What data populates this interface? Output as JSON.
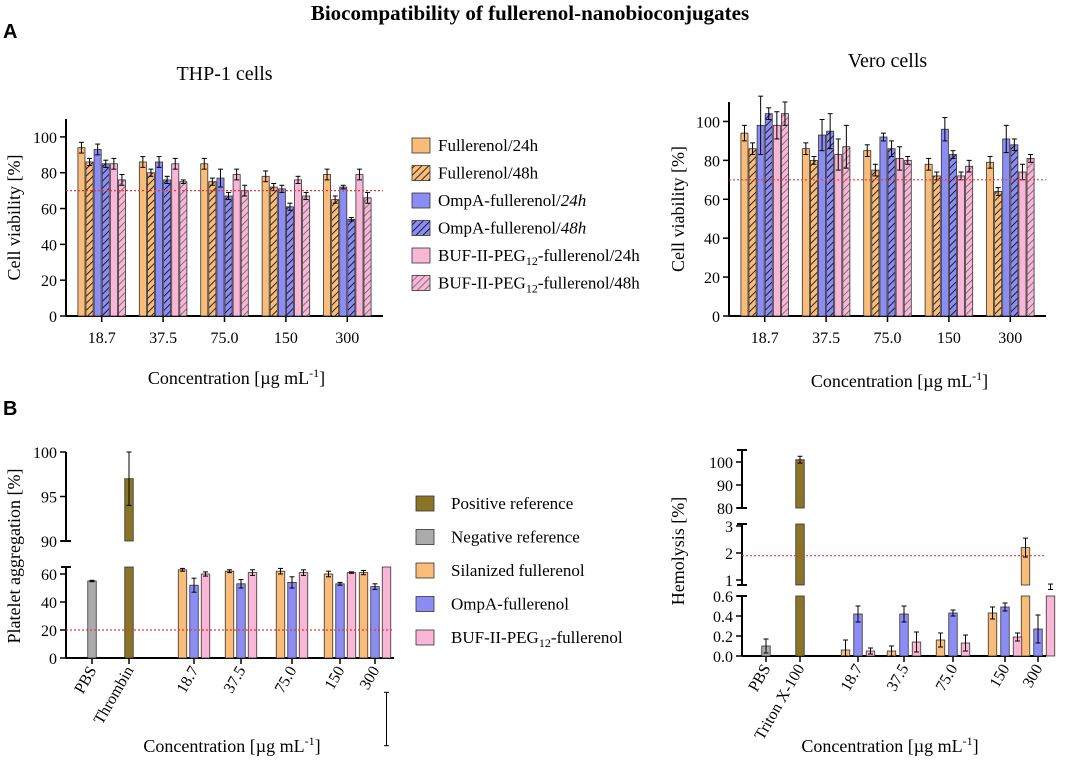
{
  "figure": {
    "title": "Biocompatibility of fullerenol-nanobioconjugates",
    "panel_a": "A",
    "panel_b": "B"
  },
  "colors": {
    "orange": "#f9bc79",
    "blue": "#8c8cf5",
    "pink": "#f9b6d7",
    "olive": "#8c7426",
    "gray": "#ababab",
    "ref_line": "#e33b3b",
    "axis": "#000000"
  },
  "legend_a": [
    {
      "text": "Fullerenol/24h",
      "color": "orange",
      "hatch": false
    },
    {
      "text": "Fullerenol/48h",
      "color": "orange",
      "hatch": true
    },
    {
      "pre": "OmpA-fullerenol/",
      "ital": "24h",
      "color": "blue",
      "hatch": false
    },
    {
      "pre": "OmpA-fullerenol/",
      "ital": "48h",
      "color": "blue",
      "hatch": true
    },
    {
      "pre": "BUF-II-PEG",
      "sub": "12",
      "post": "-fullerenol/24h",
      "color": "pink",
      "hatch": false
    },
    {
      "pre": "BUF-II-PEG",
      "sub": "12",
      "post": "-fullerenol/48h",
      "color": "pink",
      "hatch": true
    }
  ],
  "legend_b": [
    {
      "text": "Positive reference",
      "color": "olive"
    },
    {
      "text": "Negative reference",
      "color": "gray"
    },
    {
      "text": "Silanized fullerenol",
      "color": "orange"
    },
    {
      "text": "OmpA-fullerenol",
      "color": "blue"
    },
    {
      "pre": "BUF-II-PEG",
      "sub": "12",
      "post": "-fullerenol",
      "color": "pink"
    }
  ],
  "chart_data": [
    {
      "type": "bar",
      "title": "THP-1 cells",
      "xlabel": "Concentration [µg mL⁻¹]",
      "ylabel": "Cell viability [%]",
      "categories": [
        "18.7",
        "37.5",
        "75.0",
        "150",
        "300"
      ],
      "ylim": [
        0,
        110
      ],
      "yticks": [
        0,
        20,
        40,
        60,
        80,
        100
      ],
      "reference_line": 70,
      "series": [
        {
          "name": "Fullerenol/24h",
          "color": "orange",
          "hatch": false,
          "values": [
            94,
            86,
            85,
            78,
            79
          ],
          "errors": [
            3,
            3,
            3,
            3,
            3
          ]
        },
        {
          "name": "Fullerenol/48h",
          "color": "orange",
          "hatch": true,
          "values": [
            86,
            80,
            75,
            72,
            65
          ],
          "errors": [
            2,
            2,
            2,
            2,
            2
          ]
        },
        {
          "name": "OmpA-fullerenol/24h",
          "color": "blue",
          "hatch": false,
          "values": [
            93,
            86,
            77,
            71,
            72
          ],
          "errors": [
            3,
            3,
            5,
            2,
            1
          ]
        },
        {
          "name": "OmpA-fullerenol/48h",
          "color": "blue",
          "hatch": true,
          "values": [
            85,
            76,
            67,
            61,
            54
          ],
          "errors": [
            2,
            2,
            2,
            2,
            1
          ]
        },
        {
          "name": "BUF-II-PEG12-fullerenol/24h",
          "color": "pink",
          "hatch": false,
          "values": [
            85,
            85,
            79,
            76,
            79
          ],
          "errors": [
            3,
            3,
            3,
            2,
            3
          ]
        },
        {
          "name": "BUF-II-PEG12-fullerenol/48h",
          "color": "pink",
          "hatch": true,
          "values": [
            76,
            75,
            70,
            67,
            66
          ],
          "errors": [
            3,
            1,
            3,
            2,
            3
          ]
        }
      ]
    },
    {
      "type": "bar",
      "title": "Vero cells",
      "xlabel": "Concentration [µg mL⁻¹]",
      "ylabel": "Cell viability [%]",
      "categories": [
        "18.7",
        "37.5",
        "75.0",
        "150",
        "300"
      ],
      "ylim": [
        0,
        110
      ],
      "yticks": [
        0,
        20,
        40,
        60,
        80,
        100
      ],
      "reference_line": 70,
      "series": [
        {
          "name": "Fullerenol/24h",
          "color": "orange",
          "hatch": false,
          "values": [
            94,
            86,
            85,
            78,
            79
          ],
          "errors": [
            4,
            3,
            3,
            3,
            3
          ]
        },
        {
          "name": "Fullerenol/48h",
          "color": "orange",
          "hatch": true,
          "values": [
            86,
            80,
            75,
            72,
            64
          ],
          "errors": [
            3,
            2,
            3,
            2,
            2
          ]
        },
        {
          "name": "OmpA-fullerenol/24h",
          "color": "blue",
          "hatch": false,
          "values": [
            98,
            93,
            92,
            96,
            91
          ],
          "errors": [
            15,
            8,
            2,
            6,
            7
          ]
        },
        {
          "name": "OmpA-fullerenol/48h",
          "color": "blue",
          "hatch": true,
          "values": [
            104,
            95,
            86,
            83,
            88
          ],
          "errors": [
            3,
            9,
            4,
            2,
            3
          ]
        },
        {
          "name": "BUF-II-PEG12-fullerenol/24h",
          "color": "pink",
          "hatch": false,
          "values": [
            98,
            83,
            81,
            72,
            74
          ],
          "errors": [
            7,
            8,
            6,
            2,
            4
          ]
        },
        {
          "name": "BUF-II-PEG12-fullerenol/48h",
          "color": "pink",
          "hatch": true,
          "values": [
            104,
            87,
            80,
            77,
            81
          ],
          "errors": [
            6,
            11,
            2,
            3,
            2
          ]
        }
      ]
    },
    {
      "type": "bar",
      "title": "",
      "xlabel": "Concentration [µg mL⁻¹]",
      "ylabel": "Platelet aggregation [%]",
      "categories": [
        "PBS",
        "Thrombin",
        "18.7",
        "37.5",
        "75.0",
        "150",
        "300"
      ],
      "axis_break": {
        "lower_range": [
          0,
          65
        ],
        "upper_range": [
          90,
          100
        ]
      },
      "yticks_lower": [
        0,
        20,
        40,
        60
      ],
      "yticks_upper": [
        90,
        95,
        100
      ],
      "reference_line": 20,
      "series": [
        {
          "name": "Negative reference",
          "color": "gray",
          "values": [
            {
              "cat": 0,
              "v": 55,
              "e": 0.5
            }
          ]
        },
        {
          "name": "Positive reference",
          "color": "olive",
          "values": [
            {
              "cat": 1,
              "v": 97,
              "e": 3
            }
          ]
        },
        {
          "name": "Silanized fullerenol",
          "color": "orange",
          "values": [
            {
              "cat": 2,
              "v": 63,
              "e": 1
            },
            {
              "cat": 3,
              "v": 62,
              "e": 1
            },
            {
              "cat": 4,
              "v": 62,
              "e": 2
            },
            {
              "cat": 5,
              "v": 60,
              "e": 2
            },
            {
              "cat": 6,
              "v": 61,
              "e": 1.5
            }
          ]
        },
        {
          "name": "OmpA-fullerenol",
          "color": "blue",
          "values": [
            {
              "cat": 2,
              "v": 52,
              "e": 5
            },
            {
              "cat": 3,
              "v": 53,
              "e": 3
            },
            {
              "cat": 4,
              "v": 54,
              "e": 4
            },
            {
              "cat": 5,
              "v": 53,
              "e": 1
            },
            {
              "cat": 6,
              "v": 51,
              "e": 2
            }
          ]
        },
        {
          "name": "BUF-II-PEG12-fullerenol",
          "color": "pink",
          "values": [
            {
              "cat": 2,
              "v": 60,
              "e": 1.5
            },
            {
              "cat": 3,
              "v": 61,
              "e": 2
            },
            {
              "cat": 4,
              "v": 61,
              "e": 2
            },
            {
              "cat": 5,
              "v": 61,
              "e": 0.5
            },
            {
              "cat": 6,
              "v": 70,
              "e": 3
            }
          ]
        }
      ]
    },
    {
      "type": "bar",
      "title": "",
      "xlabel": "Concentration [µg mL⁻¹]",
      "ylabel": "Hemolysis [%]",
      "categories": [
        "PBS",
        "Triton X-100",
        "18.7",
        "37.5",
        "75.0",
        "150",
        "300"
      ],
      "axis_break": {
        "lower_range": [
          0,
          0.6
        ],
        "middle_range": [
          0.6,
          3
        ],
        "upper_range": [
          80,
          103
        ]
      },
      "yticks_lower": [
        0.0,
        0.2,
        0.4,
        0.6
      ],
      "yticks_middle": [
        1,
        2,
        3
      ],
      "yticks_upper": [
        80,
        90,
        100
      ],
      "reference_line": 1.9,
      "series": [
        {
          "name": "Negative reference",
          "color": "gray",
          "values": [
            {
              "cat": 0,
              "v": 0.1,
              "e": 0.07
            }
          ]
        },
        {
          "name": "Positive reference",
          "color": "olive",
          "values": [
            {
              "cat": 1,
              "v": 101,
              "e": 1.5
            }
          ]
        },
        {
          "name": "Silanized fullerenol",
          "color": "orange",
          "values": [
            {
              "cat": 2,
              "v": 0.06,
              "e": 0.1
            },
            {
              "cat": 3,
              "v": 0.05,
              "e": 0.05
            },
            {
              "cat": 4,
              "v": 0.16,
              "e": 0.07
            },
            {
              "cat": 5,
              "v": 0.43,
              "e": 0.06
            },
            {
              "cat": 6,
              "v": 2.2,
              "e": 0.35
            }
          ]
        },
        {
          "name": "OmpA-fullerenol",
          "color": "blue",
          "values": [
            {
              "cat": 2,
              "v": 0.42,
              "e": 0.08
            },
            {
              "cat": 3,
              "v": 0.42,
              "e": 0.08
            },
            {
              "cat": 4,
              "v": 0.43,
              "e": 0.03
            },
            {
              "cat": 5,
              "v": 0.49,
              "e": 0.04
            },
            {
              "cat": 6,
              "v": 0.27,
              "e": 0.14
            }
          ]
        },
        {
          "name": "BUF-II-PEG12-fullerenol",
          "color": "pink",
          "values": [
            {
              "cat": 2,
              "v": 0.05,
              "e": 0.03
            },
            {
              "cat": 3,
              "v": 0.14,
              "e": 0.1
            },
            {
              "cat": 4,
              "v": 0.13,
              "e": 0.08
            },
            {
              "cat": 5,
              "v": 0.19,
              "e": 0.04
            },
            {
              "cat": 6,
              "v": 0.75,
              "e": 0.1
            }
          ]
        }
      ]
    }
  ]
}
